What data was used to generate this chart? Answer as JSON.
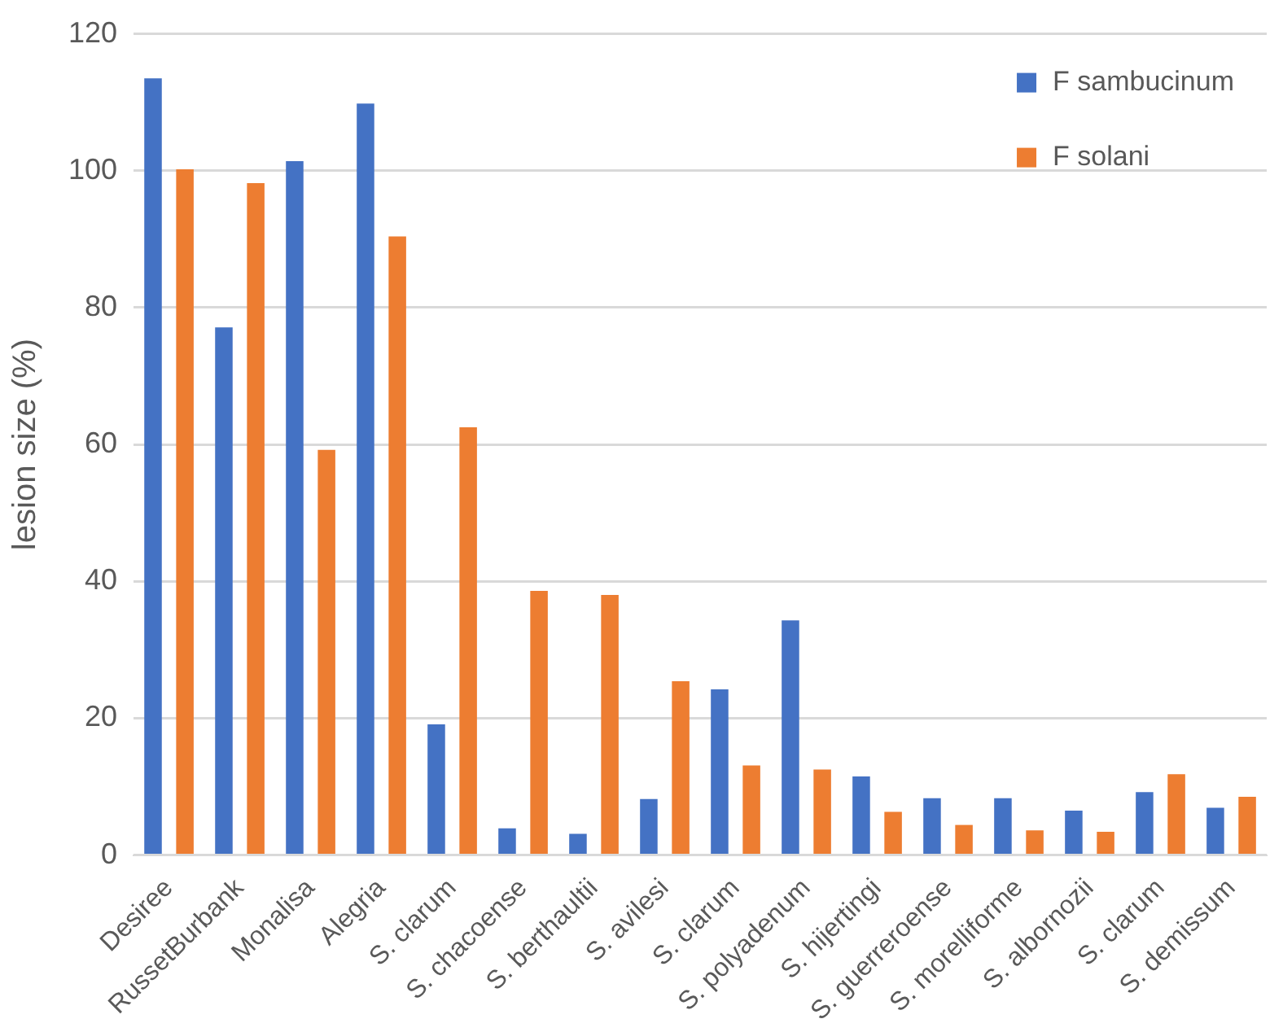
{
  "chart_data": {
    "type": "bar",
    "ylabel": "lesion size (%)",
    "categories": [
      "Desiree",
      "RussetBurbank",
      "Monalisa",
      "Alegria",
      "S. clarum",
      "S. chacoense",
      "S. berthaultii",
      "S. avilesi",
      "S. clarum",
      "S. polyadenum",
      "S. hijertingi",
      "S. guerreroense",
      "S. morelliforme",
      "S. albornozii",
      "S. clarum",
      "S. demissum"
    ],
    "series": [
      {
        "name": "F sambucinum",
        "color": "#4472c4",
        "values": [
          113.5,
          77.1,
          101.4,
          109.8,
          19.1,
          3.9,
          3.1,
          8.2,
          24.2,
          34.3,
          11.5,
          8.3,
          8.3,
          6.5,
          9.2,
          6.9
        ]
      },
      {
        "name": "F solani",
        "color": "#ed7d31",
        "values": [
          100.2,
          98.2,
          59.2,
          90.4,
          62.5,
          38.6,
          38.0,
          25.4,
          13.1,
          12.5,
          6.3,
          4.4,
          3.6,
          3.4,
          11.8,
          8.5
        ]
      }
    ],
    "ylim": [
      0,
      120
    ],
    "yticks": [
      0,
      20,
      40,
      60,
      80,
      100,
      120
    ],
    "grid": "y",
    "legend": "top right"
  }
}
